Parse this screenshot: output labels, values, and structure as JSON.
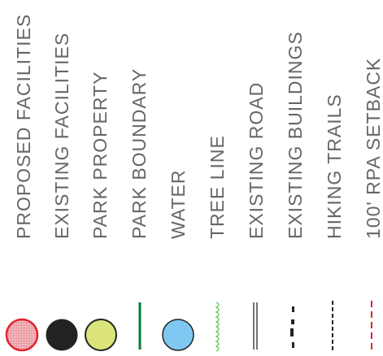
{
  "legend": {
    "items": [
      {
        "id": "proposed-facilities",
        "label": "PROPOSED  FACILITIES",
        "symbol": "circle-hatched-red",
        "fill": "#f2b8bf",
        "stroke": "#e0232e"
      },
      {
        "id": "existing-facilities",
        "label": "EXISTING  FACILITIES",
        "symbol": "circle-solid",
        "fill": "#222222"
      },
      {
        "id": "park-property",
        "label": "PARK  PROPERTY",
        "symbol": "circle-solid",
        "fill": "#dbe47a",
        "stroke": "#222222"
      },
      {
        "id": "park-boundary",
        "label": "PARK  BOUNDARY",
        "symbol": "solid-line",
        "stroke": "#0b7a3b"
      },
      {
        "id": "water",
        "label": "WATER",
        "symbol": "circle-solid",
        "fill": "#7ec8f2",
        "stroke": "#222222"
      },
      {
        "id": "tree-line",
        "label": "TREE  LINE",
        "symbol": "scalloped-line",
        "stroke": "#5cc85c"
      },
      {
        "id": "existing-road",
        "label": "EXISTING  ROAD",
        "symbol": "double-line",
        "stroke": "#444444"
      },
      {
        "id": "existing-buildings",
        "label": "EXISTING  BUILDINGS",
        "symbol": "block-dashes",
        "stroke": "#222222"
      },
      {
        "id": "hiking-trails",
        "label": "HIKING  TRAILS",
        "symbol": "dashed-line",
        "stroke": "#222222"
      },
      {
        "id": "rpa-setback",
        "label": "100'  RPA  SETBACK",
        "symbol": "dashed-line",
        "stroke": "#e0232e"
      }
    ]
  }
}
